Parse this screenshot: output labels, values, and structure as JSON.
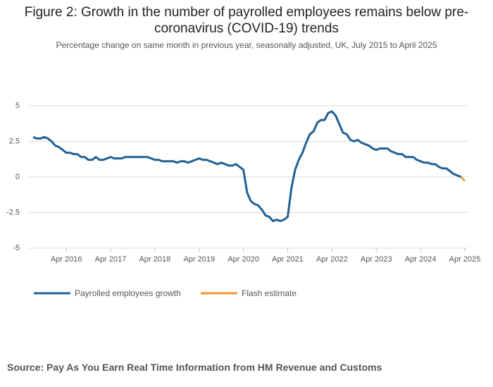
{
  "chart_data": {
    "type": "line",
    "title": "Figure 2: Growth in the number of payrolled employees remains below pre-coronavirus (COVID-19) trends",
    "subtitle": "Percentage change on same month in previous year, seasonally adjusted, UK, July 2015 to April 2025",
    "source": "Source: Pay As You Earn Real Time Information from HM Revenue and Customs",
    "x": [
      "2015-07",
      "2015-08",
      "2015-09",
      "2015-10",
      "2015-11",
      "2015-12",
      "2016-01",
      "2016-02",
      "2016-03",
      "2016-04",
      "2016-05",
      "2016-06",
      "2016-07",
      "2016-08",
      "2016-09",
      "2016-10",
      "2016-11",
      "2016-12",
      "2017-01",
      "2017-02",
      "2017-03",
      "2017-04",
      "2017-05",
      "2017-06",
      "2017-07",
      "2017-08",
      "2017-09",
      "2017-10",
      "2017-11",
      "2017-12",
      "2018-01",
      "2018-02",
      "2018-03",
      "2018-04",
      "2018-05",
      "2018-06",
      "2018-07",
      "2018-08",
      "2018-09",
      "2018-10",
      "2018-11",
      "2018-12",
      "2019-01",
      "2019-02",
      "2019-03",
      "2019-04",
      "2019-05",
      "2019-06",
      "2019-07",
      "2019-08",
      "2019-09",
      "2019-10",
      "2019-11",
      "2019-12",
      "2020-01",
      "2020-02",
      "2020-03",
      "2020-04",
      "2020-05",
      "2020-06",
      "2020-07",
      "2020-08",
      "2020-09",
      "2020-10",
      "2020-11",
      "2020-12",
      "2021-01",
      "2021-02",
      "2021-03",
      "2021-04",
      "2021-05",
      "2021-06",
      "2021-07",
      "2021-08",
      "2021-09",
      "2021-10",
      "2021-11",
      "2021-12",
      "2022-01",
      "2022-02",
      "2022-03",
      "2022-04",
      "2022-05",
      "2022-06",
      "2022-07",
      "2022-08",
      "2022-09",
      "2022-10",
      "2022-11",
      "2022-12",
      "2023-01",
      "2023-02",
      "2023-03",
      "2023-04",
      "2023-05",
      "2023-06",
      "2023-07",
      "2023-08",
      "2023-09",
      "2023-10",
      "2023-11",
      "2023-12",
      "2024-01",
      "2024-02",
      "2024-03",
      "2024-04",
      "2024-05",
      "2024-06",
      "2024-07",
      "2024-08",
      "2024-09",
      "2024-10",
      "2024-11",
      "2024-12",
      "2025-01",
      "2025-02",
      "2025-03",
      "2025-04"
    ],
    "series": [
      {
        "name": "Payrolled employees growth",
        "color": "#206095",
        "values": [
          2.8,
          2.7,
          2.7,
          2.8,
          2.7,
          2.5,
          2.2,
          2.1,
          1.9,
          1.7,
          1.7,
          1.6,
          1.6,
          1.4,
          1.4,
          1.2,
          1.2,
          1.4,
          1.2,
          1.2,
          1.3,
          1.4,
          1.3,
          1.3,
          1.3,
          1.4,
          1.4,
          1.4,
          1.4,
          1.4,
          1.4,
          1.4,
          1.3,
          1.2,
          1.2,
          1.1,
          1.1,
          1.1,
          1.1,
          1.0,
          1.1,
          1.1,
          1.0,
          1.1,
          1.2,
          1.3,
          1.2,
          1.2,
          1.1,
          1.0,
          0.9,
          1.0,
          0.9,
          0.8,
          0.8,
          0.9,
          0.7,
          0.5,
          -1.1,
          -1.7,
          -1.9,
          -2.0,
          -2.3,
          -2.7,
          -2.8,
          -3.1,
          -3.0,
          -3.1,
          -3.0,
          -2.8,
          -0.8,
          0.5,
          1.2,
          1.7,
          2.4,
          3.0,
          3.2,
          3.8,
          4.0,
          4.0,
          4.5,
          4.6,
          4.3,
          3.7,
          3.1,
          3.0,
          2.6,
          2.5,
          2.6,
          2.4,
          2.3,
          2.2,
          2.0,
          1.9,
          2.0,
          2.0,
          2.0,
          1.8,
          1.7,
          1.6,
          1.6,
          1.4,
          1.4,
          1.4,
          1.2,
          1.1,
          1.0,
          1.0,
          0.9,
          0.9,
          0.7,
          0.6,
          0.6,
          0.4,
          0.2,
          0.1,
          0.0,
          null
        ]
      },
      {
        "name": "Flash estimate",
        "color": "#f39431",
        "values": [
          null,
          null,
          null,
          null,
          null,
          null,
          null,
          null,
          null,
          null,
          null,
          null,
          null,
          null,
          null,
          null,
          null,
          null,
          null,
          null,
          null,
          null,
          null,
          null,
          null,
          null,
          null,
          null,
          null,
          null,
          null,
          null,
          null,
          null,
          null,
          null,
          null,
          null,
          null,
          null,
          null,
          null,
          null,
          null,
          null,
          null,
          null,
          null,
          null,
          null,
          null,
          null,
          null,
          null,
          null,
          null,
          null,
          null,
          null,
          null,
          null,
          null,
          null,
          null,
          null,
          null,
          null,
          null,
          null,
          null,
          null,
          null,
          null,
          null,
          null,
          null,
          null,
          null,
          null,
          null,
          null,
          null,
          null,
          null,
          null,
          null,
          null,
          null,
          null,
          null,
          null,
          null,
          null,
          null,
          null,
          null,
          null,
          null,
          null,
          null,
          null,
          null,
          null,
          null,
          null,
          null,
          null,
          null,
          null,
          null,
          null,
          null,
          null,
          null,
          null,
          null,
          0.0,
          -0.3
        ]
      }
    ],
    "xticks": [
      {
        "value": "2016-04",
        "label": "Apr 2016"
      },
      {
        "value": "2017-04",
        "label": "Apr 2017"
      },
      {
        "value": "2018-04",
        "label": "Apr 2018"
      },
      {
        "value": "2019-04",
        "label": "Apr 2019"
      },
      {
        "value": "2020-04",
        "label": "Apr 2020"
      },
      {
        "value": "2021-04",
        "label": "Apr 2021"
      },
      {
        "value": "2022-04",
        "label": "Apr 2022"
      },
      {
        "value": "2023-04",
        "label": "Apr 2023"
      },
      {
        "value": "2024-04",
        "label": "Apr 2024"
      },
      {
        "value": "2025-04",
        "label": "Apr 2025"
      }
    ],
    "ylim": [
      -5,
      5
    ],
    "yticks": [
      5,
      2.5,
      0,
      -2.5,
      -5
    ],
    "grid": true,
    "legend": "bottom"
  }
}
